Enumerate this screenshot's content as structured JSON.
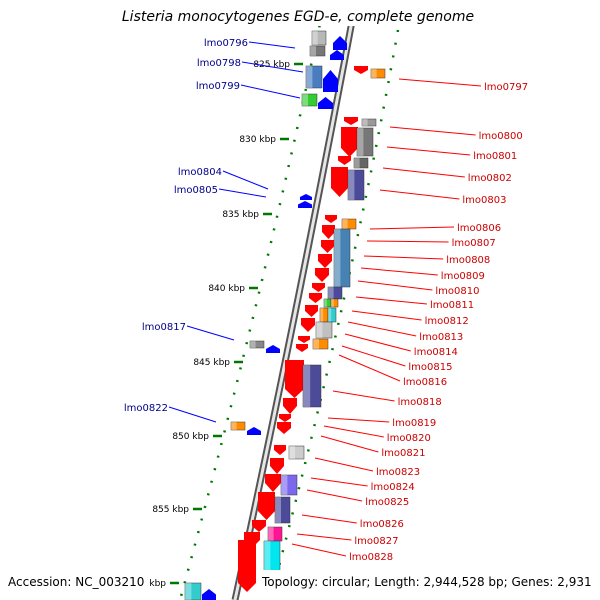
{
  "title": "Listeria monocytogenes EGD-e, complete genome",
  "footer": {
    "accession": "Accession: NC_003210",
    "topology": "Topology: circular; Length: 2,944,528 bp; Genes: 2,931"
  },
  "colors": {
    "forward_gene": "#0000ff",
    "reverse_gene": "#ff0000",
    "left_label": "#00008b",
    "right_label": "#cc0000",
    "tick": "#007700",
    "backbone": "#808080"
  },
  "kbp_ticks": [
    "825 kbp",
    "830 kbp",
    "835 kbp",
    "840 kbp",
    "845 kbp",
    "850 kbp",
    "855 kbp",
    "860 kbp"
  ],
  "left_genes": [
    "lmo0796",
    "lmo0798",
    "lmo0799",
    "lmo0804",
    "lmo0805",
    "lmo0817",
    "lmo0822"
  ],
  "right_genes": [
    "lmo0797",
    "lmo0800",
    "lmo0801",
    "lmo0802",
    "lmo0803",
    "lmo0806",
    "lmo0807",
    "lmo0808",
    "lmo0809",
    "lmo0810",
    "lmo0811",
    "lmo0812",
    "lmo0813",
    "lmo0814",
    "lmo0815",
    "lmo0816",
    "lmo0818",
    "lmo0819",
    "lmo0820",
    "lmo0821",
    "lmo0823",
    "lmo0824",
    "lmo0825",
    "lmo0826",
    "lmo0827",
    "lmo0828"
  ]
}
